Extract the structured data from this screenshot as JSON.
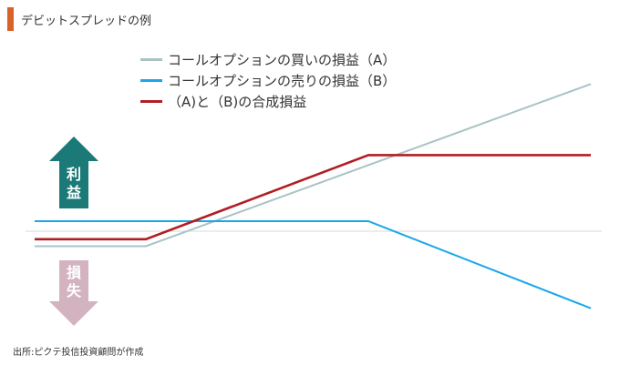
{
  "header": {
    "title": "デビットスプレッドの例",
    "accent_color": "#d9622b"
  },
  "chart_data": {
    "type": "line",
    "title": "デビットスプレッドの例",
    "xlabel": "",
    "ylabel": "",
    "grid": false,
    "legend_position": "top-left",
    "baseline": 0,
    "series": [
      {
        "name": "コールオプションの買いの損益（A）",
        "color": "#a9c3c5",
        "points": [
          [
            0,
            -1.5
          ],
          [
            0.2,
            -1.5
          ],
          [
            1,
            14.7
          ]
        ]
      },
      {
        "name": "コールオプションの売りの損益（B）",
        "color": "#1aa7e8",
        "points": [
          [
            0,
            1.0
          ],
          [
            0.6,
            1.0
          ],
          [
            1,
            -7.7
          ]
        ]
      },
      {
        "name": "（A)と（B)の合成損益",
        "color": "#b01e23",
        "points": [
          [
            0,
            -0.8
          ],
          [
            0.2,
            -0.8
          ],
          [
            0.6,
            7.6
          ],
          [
            1,
            7.6
          ]
        ]
      }
    ]
  },
  "indicators": {
    "profit_label": [
      "利",
      "益"
    ],
    "profit_color": "#1b7a78",
    "loss_label": [
      "損",
      "失"
    ],
    "loss_color": "#d3b3c0"
  },
  "footer": {
    "source": "出所:ピクテ投信投資顧問が作成"
  }
}
